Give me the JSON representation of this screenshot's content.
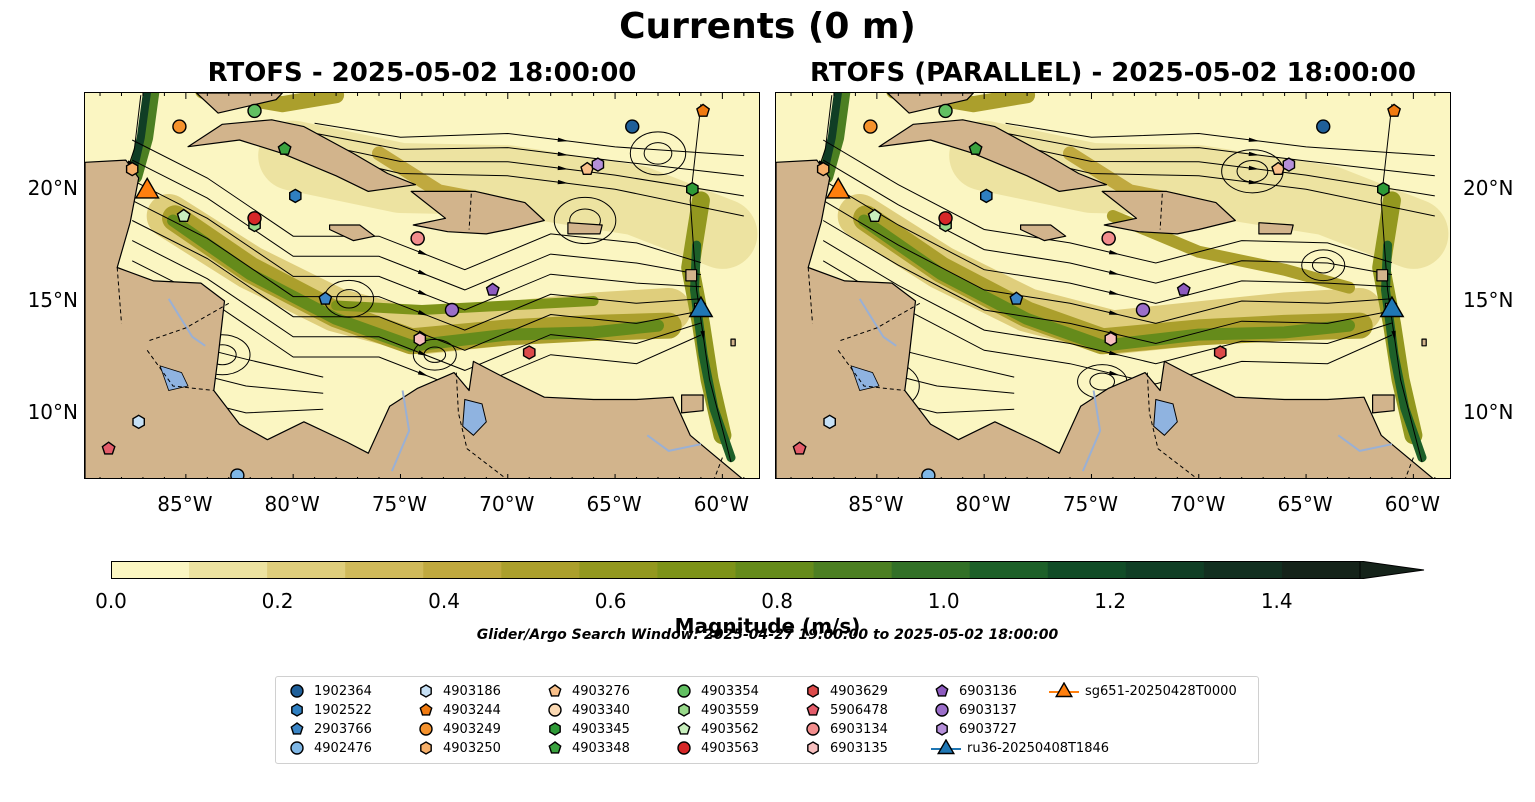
{
  "figure": {
    "title": "Currents (0 m)",
    "left_panel_title": "RTOFS - 2025-05-02 18:00:00",
    "right_panel_title": "RTOFS (PARALLEL) - 2025-05-02 18:00:00",
    "search_window": "Glider/Argo Search Window: 2025-04-27 19:00:00 to 2025-05-02 18:00:00"
  },
  "axes": {
    "lon_ticks": [
      "85°W",
      "80°W",
      "75°W",
      "70°W",
      "65°W",
      "60°W"
    ],
    "lat_ticks": [
      "20°N",
      "15°N",
      "10°N"
    ],
    "lon_range": [
      -89.7,
      -58.2
    ],
    "lat_range": [
      7.0,
      24.3
    ]
  },
  "colorbar": {
    "label": "Magnitude (m/s)",
    "tick_labels": [
      "0.0",
      "0.2",
      "0.4",
      "0.6",
      "0.8",
      "1.0",
      "1.2",
      "1.4"
    ],
    "range": [
      0,
      1.5
    ],
    "colors": [
      "#fbf6c2",
      "#ede3a1",
      "#dfce7c",
      "#d0ba5b",
      "#c0a93f",
      "#ab9f2c",
      "#93981f",
      "#7d9319",
      "#658b1b",
      "#4c7f22",
      "#327027",
      "#1d6029",
      "#114c27",
      "#103e25",
      "#122f20",
      "#15231a"
    ],
    "extend": "max"
  },
  "colors": {
    "land": "#d2b48c",
    "lake": "#8fb3e0",
    "river": "#9ab0d4"
  },
  "legend": [
    {
      "name": "1902364",
      "shape": "circle",
      "color": "#1f5f99"
    },
    {
      "name": "1902522",
      "shape": "hexagon",
      "color": "#2f7fc1"
    },
    {
      "name": "2903766",
      "shape": "pentagon",
      "color": "#3a85c6"
    },
    {
      "name": "4902476",
      "shape": "circle",
      "color": "#7fb7e6"
    },
    {
      "name": "4903186",
      "shape": "hexagon",
      "color": "#c6e0f5"
    },
    {
      "name": "4903244",
      "shape": "pentagon",
      "color": "#f07a10"
    },
    {
      "name": "4903249",
      "shape": "circle",
      "color": "#f5922d"
    },
    {
      "name": "4903250",
      "shape": "hexagon",
      "color": "#f7b06a"
    },
    {
      "name": "4903276",
      "shape": "pentagon",
      "color": "#f9c08a"
    },
    {
      "name": "4903340",
      "shape": "circle",
      "color": "#fbd9b3"
    },
    {
      "name": "4903345",
      "shape": "hexagon",
      "color": "#2e9a37"
    },
    {
      "name": "4903348",
      "shape": "pentagon",
      "color": "#3aa33f"
    },
    {
      "name": "4903354",
      "shape": "circle",
      "color": "#62c062"
    },
    {
      "name": "4903559",
      "shape": "hexagon",
      "color": "#98d98a"
    },
    {
      "name": "4903562",
      "shape": "pentagon",
      "color": "#c8efbd"
    },
    {
      "name": "4903563",
      "shape": "circle",
      "color": "#d62728"
    },
    {
      "name": "4903629",
      "shape": "hexagon",
      "color": "#dc4a4a"
    },
    {
      "name": "5906478",
      "shape": "pentagon",
      "color": "#e45c6a"
    },
    {
      "name": "6903134",
      "shape": "circle",
      "color": "#f28d8d"
    },
    {
      "name": "6903135",
      "shape": "hexagon",
      "color": "#f8c0c0"
    },
    {
      "name": "6903136",
      "shape": "pentagon",
      "color": "#8d5bbf"
    },
    {
      "name": "6903137",
      "shape": "circle",
      "color": "#9b6ec9"
    },
    {
      "name": "6903727",
      "shape": "hexagon",
      "color": "#b58fd9"
    },
    {
      "name": "ru36-20250408T1846",
      "shape": "triangle",
      "color": "#1f77b4"
    },
    {
      "name": "sg651-20250428T0000",
      "shape": "triangle",
      "color": "#ff7f0e"
    }
  ],
  "observations": [
    {
      "id": "1902364",
      "lon": -64.2,
      "lat": 22.8
    },
    {
      "id": "1902522",
      "lon": -79.9,
      "lat": 19.7
    },
    {
      "id": "2903766",
      "lon": -78.5,
      "lat": 15.1
    },
    {
      "id": "4902476",
      "lon": -82.6,
      "lat": 7.2
    },
    {
      "id": "4903186",
      "lon": -87.2,
      "lat": 9.6
    },
    {
      "id": "4903244",
      "lon": -60.9,
      "lat": 23.5
    },
    {
      "id": "4903249",
      "lon": -85.3,
      "lat": 22.8
    },
    {
      "id": "4903250",
      "lon": -87.5,
      "lat": 20.9
    },
    {
      "id": "4903276",
      "lon": -66.3,
      "lat": 20.9
    },
    {
      "id": "4903340",
      "lon": -74.2,
      "lat": 17.8
    },
    {
      "id": "4903345",
      "lon": -61.4,
      "lat": 20.0
    },
    {
      "id": "4903348",
      "lon": -80.4,
      "lat": 21.8
    },
    {
      "id": "4903354",
      "lon": -81.8,
      "lat": 23.5
    },
    {
      "id": "4903559",
      "lon": -81.8,
      "lat": 18.4
    },
    {
      "id": "4903562",
      "lon": -85.1,
      "lat": 18.8
    },
    {
      "id": "4903563",
      "lon": -81.8,
      "lat": 18.7
    },
    {
      "id": "4903629",
      "lon": -69.0,
      "lat": 12.7
    },
    {
      "id": "5906478",
      "lon": -88.6,
      "lat": 8.4
    },
    {
      "id": "6903134",
      "lon": -74.2,
      "lat": 17.8
    },
    {
      "id": "6903135",
      "lon": -74.1,
      "lat": 13.3
    },
    {
      "id": "6903136",
      "lon": -70.7,
      "lat": 15.5
    },
    {
      "id": "6903137",
      "lon": -72.6,
      "lat": 14.6
    },
    {
      "id": "6903727",
      "lon": -65.8,
      "lat": 21.1
    },
    {
      "id": "ru36-20250408T1846",
      "lon": -61.0,
      "lat": 14.6
    },
    {
      "id": "sg651-20250428T0000",
      "lon": -86.8,
      "lat": 19.9
    }
  ]
}
